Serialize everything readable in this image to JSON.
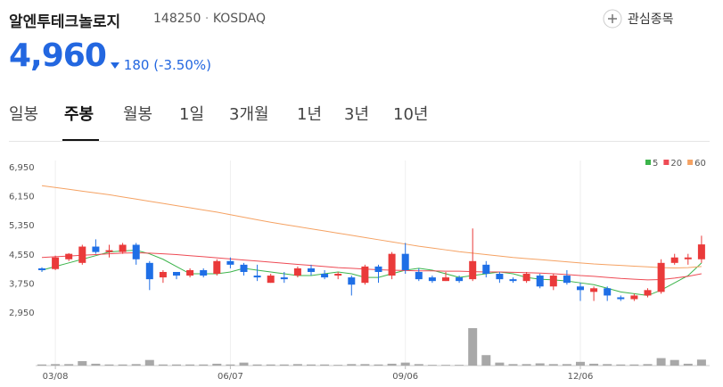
{
  "header": {
    "title": "알엔투테크놀로지",
    "code": "148250",
    "separator": "·",
    "market": "KOSDAQ",
    "watch_button": "관심종목"
  },
  "price": {
    "value": "4,960",
    "change": "180",
    "change_pct": "(-3.50%)"
  },
  "tabs": {
    "items": [
      "일봉",
      "주봉",
      "월봉",
      "1일",
      "3개월",
      "1년",
      "3년",
      "10년"
    ],
    "selected": 1
  },
  "chart_data": {
    "type": "candlestick",
    "up_color": "#ea3a3a",
    "down_color": "#1f6fe6",
    "categories": [
      null,
      "03/08",
      null,
      null,
      null,
      null,
      null,
      null,
      null,
      null,
      null,
      null,
      null,
      null,
      "06/07",
      null,
      null,
      null,
      null,
      null,
      null,
      null,
      null,
      null,
      null,
      null,
      null,
      "09/06",
      null,
      null,
      null,
      null,
      null,
      null,
      null,
      null,
      null,
      null,
      null,
      null,
      "12/06",
      null,
      null,
      null,
      null,
      null,
      null,
      null,
      null,
      null
    ],
    "open": [
      4300,
      4280,
      4550,
      4450,
      4900,
      4750,
      4750,
      4950,
      4450,
      4050,
      4200,
      4100,
      4250,
      4150,
      4500,
      4400,
      4100,
      3900,
      4050,
      4100,
      4300,
      4150,
      4100,
      4050,
      3900,
      4350,
      4100,
      4700,
      4200,
      4050,
      3950,
      4050,
      4000,
      4400,
      4150,
      4000,
      3950,
      4100,
      3800,
      4100,
      3800,
      3650,
      3750,
      3500,
      3450,
      3550,
      3650,
      4450,
      4550,
      4550
    ],
    "close": [
      4250,
      4600,
      4700,
      4900,
      4750,
      4800,
      4950,
      4550,
      4000,
      4200,
      4100,
      4250,
      4100,
      4500,
      4400,
      4200,
      4050,
      4100,
      4000,
      4300,
      4200,
      4050,
      4150,
      3850,
      4350,
      4200,
      4700,
      4250,
      4000,
      3950,
      4050,
      3950,
      4500,
      4150,
      4000,
      3950,
      4150,
      3800,
      4100,
      3900,
      3700,
      3750,
      3550,
      3450,
      3550,
      3700,
      4450,
      4600,
      4600,
      4960
    ],
    "high": [
      4330,
      4650,
      4720,
      4950,
      5100,
      4950,
      5000,
      5000,
      4500,
      4250,
      4200,
      4300,
      4300,
      4550,
      4600,
      4450,
      4400,
      4150,
      4200,
      4350,
      4400,
      4250,
      4200,
      4100,
      4400,
      4400,
      4750,
      5000,
      4300,
      4100,
      4200,
      4100,
      5400,
      4500,
      4200,
      4050,
      4200,
      4150,
      4150,
      4250,
      3900,
      3800,
      3800,
      3550,
      3600,
      3750,
      4550,
      4700,
      4700,
      5200
    ],
    "low": [
      4200,
      4250,
      4500,
      4400,
      4700,
      4600,
      4700,
      4400,
      3700,
      3900,
      4000,
      4050,
      4050,
      4100,
      4300,
      4100,
      3950,
      3900,
      3900,
      4050,
      4100,
      4000,
      4000,
      3550,
      3850,
      3900,
      4000,
      4150,
      3950,
      3900,
      3950,
      3900,
      3950,
      4050,
      3900,
      3900,
      3900,
      3750,
      3700,
      3850,
      3400,
      3400,
      3400,
      3400,
      3400,
      3500,
      3600,
      4400,
      4400,
      4450
    ],
    "volume": [
      3,
      4,
      4,
      12,
      5,
      3,
      3,
      4,
      15,
      3,
      3,
      3,
      3,
      5,
      3,
      8,
      3,
      3,
      3,
      4,
      3,
      3,
      2,
      4,
      4,
      3,
      5,
      8,
      4,
      2,
      2,
      2,
      100,
      28,
      8,
      4,
      4,
      6,
      4,
      4,
      10,
      5,
      4,
      3,
      3,
      4,
      20,
      15,
      5,
      16
    ],
    "volume_ylim": [
      0,
      100
    ],
    "volume_color": "#a8a8a8",
    "ylim": [
      2650,
      7250
    ],
    "yticks": [
      {
        "value": 6950,
        "label": "6,950"
      },
      {
        "value": 6150,
        "label": "6,150"
      },
      {
        "value": 5350,
        "label": "5,350"
      },
      {
        "value": 4550,
        "label": "4,550"
      },
      {
        "value": 3750,
        "label": "3,750"
      },
      {
        "value": 2950,
        "label": "2,950"
      }
    ],
    "series": [
      {
        "name": "5",
        "color": "#3cb44b",
        "values": [
          4250,
          4350,
          4450,
          4550,
          4650,
          4750,
          4780,
          4800,
          4700,
          4550,
          4350,
          4150,
          4150,
          4150,
          4200,
          4300,
          4250,
          4200,
          4150,
          4100,
          4100,
          4150,
          4200,
          4150,
          4050,
          4050,
          4150,
          4250,
          4300,
          4250,
          4150,
          4050,
          4100,
          4150,
          4200,
          4150,
          4050,
          4000,
          3980,
          3950,
          3900,
          3850,
          3750,
          3650,
          3600,
          3550,
          3700,
          3900,
          4100,
          4450
        ]
      },
      {
        "name": "20",
        "color": "#ee4b55",
        "values": [
          4600,
          4620,
          4640,
          4660,
          4680,
          4700,
          4720,
          4730,
          4720,
          4700,
          4680,
          4650,
          4620,
          4590,
          4560,
          4530,
          4500,
          4470,
          4440,
          4410,
          4380,
          4350,
          4320,
          4300,
          4280,
          4260,
          4250,
          4240,
          4230,
          4230,
          4220,
          4220,
          4210,
          4200,
          4200,
          4190,
          4180,
          4170,
          4150,
          4130,
          4100,
          4080,
          4050,
          4020,
          4000,
          3980,
          3990,
          4030,
          4080,
          4150
        ]
      },
      {
        "name": "60",
        "color": "#f5a263",
        "values": [
          6580,
          6530,
          6480,
          6430,
          6380,
          6330,
          6270,
          6210,
          6150,
          6090,
          6030,
          5970,
          5910,
          5850,
          5780,
          5710,
          5640,
          5570,
          5510,
          5450,
          5390,
          5330,
          5270,
          5210,
          5150,
          5090,
          5030,
          4970,
          4910,
          4860,
          4810,
          4760,
          4720,
          4680,
          4640,
          4600,
          4570,
          4540,
          4510,
          4480,
          4450,
          4420,
          4400,
          4380,
          4360,
          4340,
          4320,
          4310,
          4320,
          4350
        ]
      }
    ],
    "legend": "top-right"
  }
}
